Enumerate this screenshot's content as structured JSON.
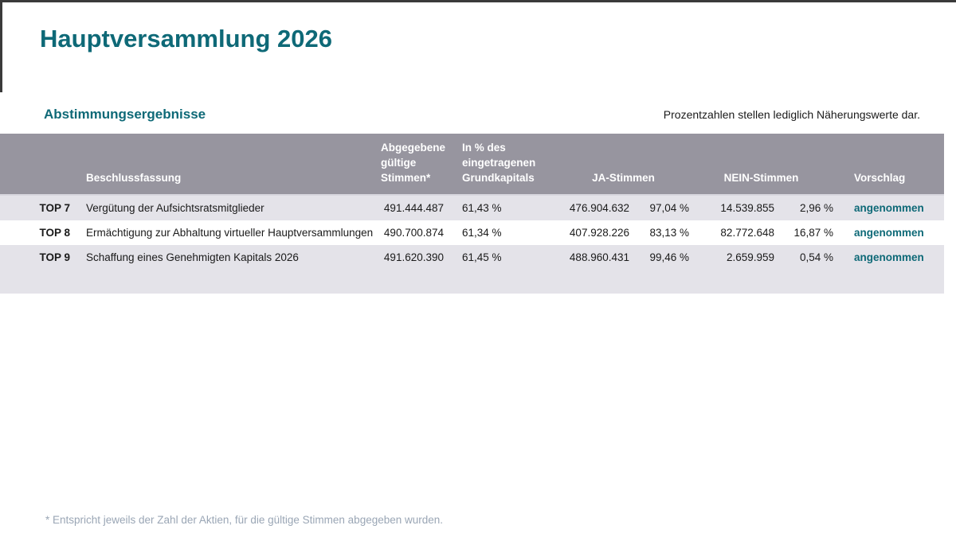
{
  "page": {
    "title": "Hauptversammlung 2026",
    "section_title": "Abstimmungsergebnisse",
    "disclaimer": "Prozentzahlen stellen lediglich Näherungswerte dar.",
    "footnote": "* Entspricht jeweils der Zahl der Aktien, für die gültige Stimmen abgegeben wurden."
  },
  "colors": {
    "accent_teal": "#0e6977",
    "table_header_bg": "#97959f",
    "row_stripe_bg": "#e4e3e9",
    "frame_border": "#3a3a3a",
    "footnote_text": "#9aa6b5"
  },
  "table": {
    "columns": {
      "top": "",
      "beschlussfassung": "Beschlussfassung",
      "stimmen": "Abgegebene gültige Stimmen*",
      "grundkapital": "In % des eingetragenen Grundkapitals",
      "ja": "JA-Stimmen",
      "nein": "NEIN-Stimmen",
      "vorschlag": "Vorschlag"
    },
    "rows": [
      {
        "top": "TOP 7",
        "beschlussfassung": "Vergütung der Aufsichtsratsmitglieder",
        "stimmen": "491.444.487",
        "grundkapital_pct": "61,43 %",
        "ja": "476.904.632",
        "ja_pct": "97,04 %",
        "nein": "14.539.855",
        "nein_pct": "2,96 %",
        "vorschlag": "angenommen"
      },
      {
        "top": "TOP 8",
        "beschlussfassung": "Ermächtigung zur Abhaltung virtueller Hauptversammlungen",
        "stimmen": "490.700.874",
        "grundkapital_pct": "61,34 %",
        "ja": "407.928.226",
        "ja_pct": "83,13 %",
        "nein": "82.772.648",
        "nein_pct": "16,87 %",
        "vorschlag": "angenommen"
      },
      {
        "top": "TOP 9",
        "beschlussfassung": "Schaffung eines Genehmigten Kapitals 2026",
        "stimmen": "491.620.390",
        "grundkapital_pct": "61,45 %",
        "ja": "488.960.431",
        "ja_pct": "99,46 %",
        "nein": "2.659.959",
        "nein_pct": "0,54 %",
        "vorschlag": "angenommen"
      }
    ]
  }
}
